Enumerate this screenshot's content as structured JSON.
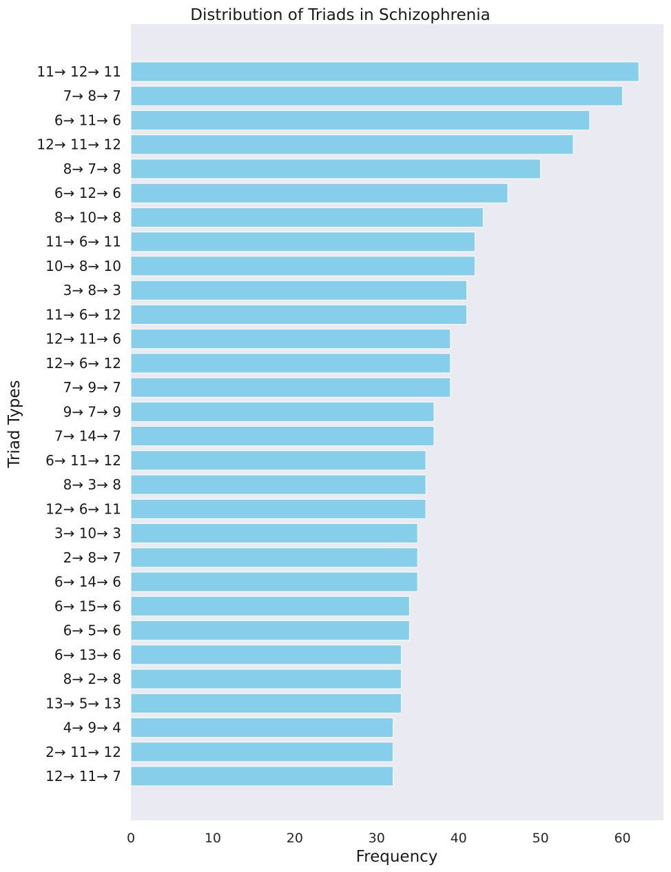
{
  "chart_data": {
    "type": "bar",
    "orientation": "horizontal",
    "title": "Distribution of Triads in Schizophrenia",
    "xlabel": "Frequency",
    "ylabel": "Triad Types",
    "xlim": [
      0,
      65
    ],
    "xticks": [
      0,
      10,
      20,
      30,
      40,
      50,
      60
    ],
    "grid": false,
    "bar_color": "#87ceeb",
    "background_color": "#eaeaf2",
    "categories": [
      "11→ 12→ 11",
      "7→ 8→ 7",
      "6→ 11→ 6",
      "12→ 11→ 12",
      "8→ 7→ 8",
      "6→ 12→ 6",
      "8→ 10→ 8",
      "11→ 6→ 11",
      "10→ 8→ 10",
      "3→ 8→ 3",
      "11→ 6→ 12",
      "12→ 11→ 6",
      "12→ 6→ 12",
      "7→ 9→ 7",
      "9→ 7→ 9",
      "7→ 14→ 7",
      "6→ 11→ 12",
      "8→ 3→ 8",
      "12→ 6→ 11",
      "3→ 10→ 3",
      "2→ 8→ 7",
      "6→ 14→ 6",
      "6→ 15→ 6",
      "6→ 5→ 6",
      "6→ 13→ 6",
      "8→ 2→ 8",
      "13→ 5→ 13",
      "4→ 9→ 4",
      "2→ 11→ 12",
      "12→ 11→ 7"
    ],
    "values": [
      62,
      60,
      56,
      54,
      50,
      46,
      43,
      42,
      42,
      41,
      41,
      39,
      39,
      39,
      37,
      37,
      36,
      36,
      36,
      35,
      35,
      35,
      34,
      34,
      33,
      33,
      33,
      32,
      32,
      32
    ]
  }
}
